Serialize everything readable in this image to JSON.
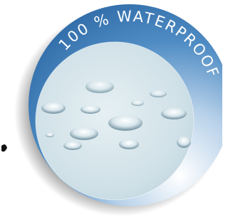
{
  "badge": {
    "text": "100 % WATERPROOF"
  }
}
